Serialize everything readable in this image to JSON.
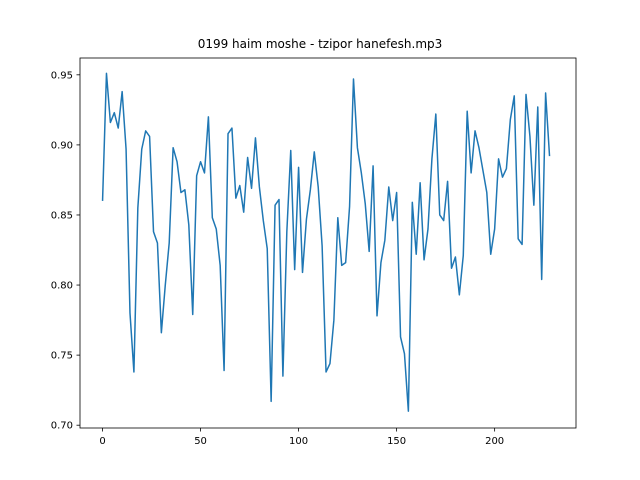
{
  "chart_data": {
    "type": "line",
    "title": "0199 haim moshe - tzipor hanefesh.mp3",
    "xlabel": "",
    "ylabel": "",
    "xlim": [
      -11.5,
      241.5
    ],
    "ylim": [
      0.698,
      0.962
    ],
    "xticks": [
      0,
      50,
      100,
      150,
      200
    ],
    "xtick_labels": [
      "0",
      "50",
      "100",
      "150",
      "200"
    ],
    "yticks": [
      0.7,
      0.75,
      0.8,
      0.85,
      0.9,
      0.95
    ],
    "ytick_labels": [
      "0.70",
      "0.75",
      "0.80",
      "0.85",
      "0.90",
      "0.95"
    ],
    "grid": false,
    "legend": "none",
    "series": [
      {
        "color": "#1f77b4",
        "x": [
          0,
          2,
          4,
          6,
          8,
          10,
          12,
          14,
          16,
          18,
          20,
          22,
          24,
          26,
          28,
          30,
          32,
          34,
          36,
          38,
          40,
          42,
          44,
          46,
          48,
          50,
          52,
          54,
          56,
          58,
          60,
          62,
          64,
          66,
          68,
          70,
          72,
          74,
          76,
          78,
          80,
          82,
          84,
          86,
          88,
          90,
          92,
          94,
          96,
          98,
          100,
          102,
          104,
          106,
          108,
          110,
          112,
          114,
          116,
          118,
          120,
          122,
          124,
          126,
          128,
          130,
          132,
          134,
          136,
          138,
          140,
          142,
          144,
          146,
          148,
          150,
          152,
          154,
          156,
          158,
          160,
          162,
          164,
          166,
          168,
          170,
          172,
          174,
          176,
          178,
          180,
          182,
          184,
          186,
          188,
          190,
          192,
          194,
          196,
          198,
          200,
          202,
          204,
          206,
          208,
          210,
          212,
          214,
          216,
          218,
          220,
          222,
          224,
          226,
          228
        ],
        "y": [
          0.86,
          0.951,
          0.916,
          0.923,
          0.912,
          0.938,
          0.897,
          0.78,
          0.738,
          0.855,
          0.897,
          0.91,
          0.906,
          0.838,
          0.83,
          0.766,
          0.8,
          0.83,
          0.898,
          0.888,
          0.866,
          0.868,
          0.843,
          0.779,
          0.878,
          0.888,
          0.88,
          0.92,
          0.848,
          0.84,
          0.814,
          0.739,
          0.908,
          0.912,
          0.862,
          0.871,
          0.852,
          0.891,
          0.869,
          0.905,
          0.87,
          0.846,
          0.826,
          0.717,
          0.857,
          0.861,
          0.735,
          0.838,
          0.896,
          0.811,
          0.884,
          0.809,
          0.847,
          0.868,
          0.895,
          0.87,
          0.828,
          0.738,
          0.744,
          0.775,
          0.848,
          0.814,
          0.816,
          0.856,
          0.947,
          0.898,
          0.88,
          0.858,
          0.824,
          0.885,
          0.778,
          0.816,
          0.832,
          0.87,
          0.846,
          0.866,
          0.763,
          0.751,
          0.71,
          0.859,
          0.822,
          0.873,
          0.818,
          0.84,
          0.89,
          0.922,
          0.85,
          0.846,
          0.874,
          0.812,
          0.82,
          0.793,
          0.821,
          0.924,
          0.88,
          0.91,
          0.898,
          0.882,
          0.866,
          0.822,
          0.84,
          0.89,
          0.877,
          0.883,
          0.918,
          0.935,
          0.833,
          0.829,
          0.936,
          0.906,
          0.857,
          0.927,
          0.804,
          0.937,
          0.892
        ]
      }
    ]
  }
}
